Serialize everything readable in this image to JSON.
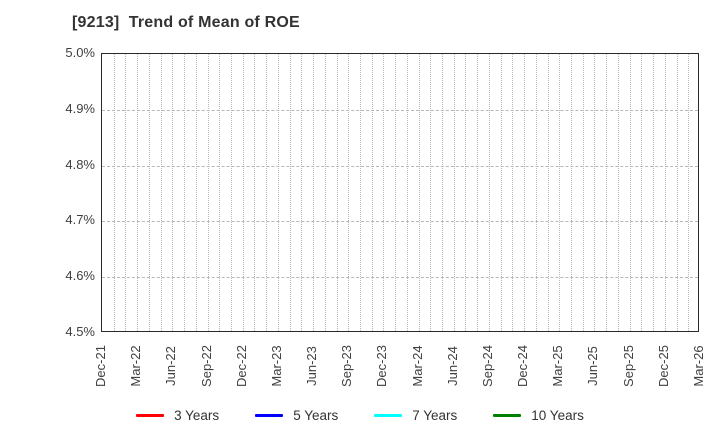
{
  "header": {
    "title": "[9213]  Trend of Mean of ROE"
  },
  "chart_data": {
    "type": "line",
    "title": "[9213]  Trend of Mean of ROE",
    "xlabel": "",
    "ylabel": "",
    "ylim": [
      4.5,
      5.0
    ],
    "y_tick_labels": [
      "4.5%",
      "4.6%",
      "4.7%",
      "4.8%",
      "4.9%",
      "5.0%"
    ],
    "x_tick_labels": [
      "Dec-21",
      "Mar-22",
      "Jun-22",
      "Sep-22",
      "Dec-22",
      "Mar-23",
      "Jun-23",
      "Sep-23",
      "Dec-23",
      "Mar-24",
      "Jun-24",
      "Sep-24",
      "Dec-24",
      "Mar-25",
      "Jun-25",
      "Sep-25",
      "Dec-25",
      "Mar-26"
    ],
    "x_tick_rotation_deg": 90,
    "grid": {
      "vertical": "dotted, monthly",
      "horizontal": "dashed, every 0.1%"
    },
    "legend_position": "bottom",
    "series": [
      {
        "name": "3 Years",
        "color": "#ff0000",
        "values": []
      },
      {
        "name": "5 Years",
        "color": "#0000ff",
        "values": []
      },
      {
        "name": "7 Years",
        "color": "#00ffff",
        "values": []
      },
      {
        "name": "10 Years",
        "color": "#008000",
        "values": []
      }
    ]
  },
  "style": {
    "background": "#ffffff",
    "axis_border_color": "#2b2b2b",
    "grid_color": "#b8b8b8",
    "tick_label_color": "#404040",
    "title_color": "#333333"
  }
}
